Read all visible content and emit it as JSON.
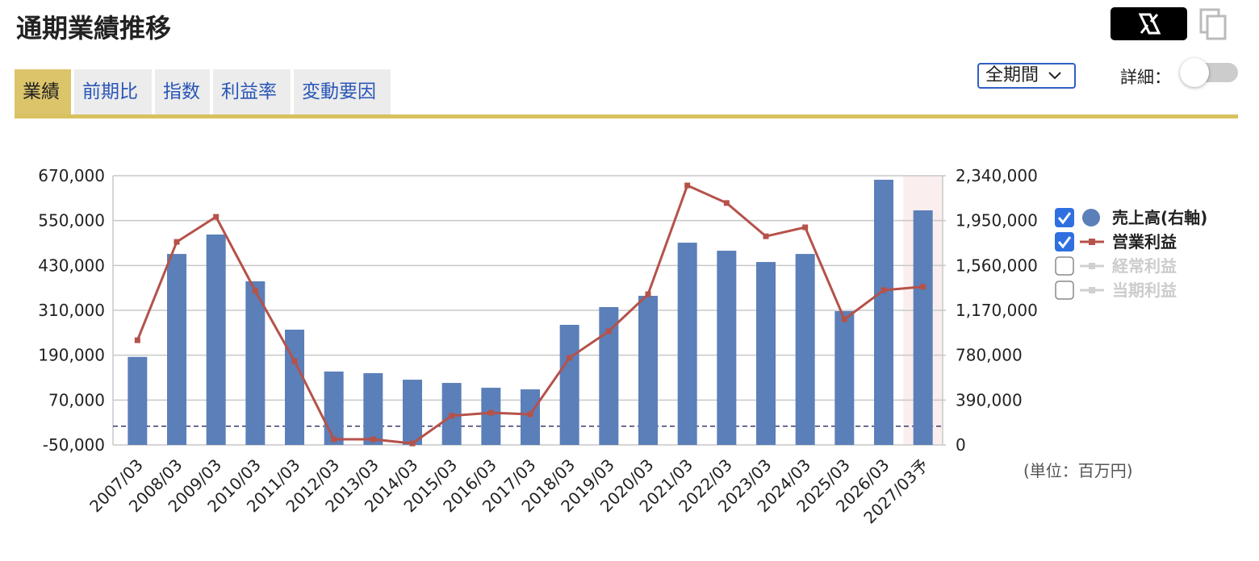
{
  "header": {
    "title": "通期業績推移"
  },
  "tabs": [
    "業績",
    "前期比",
    "指数",
    "利益率",
    "変動要因"
  ],
  "active_tab": 0,
  "period_select": "全期間",
  "detail_label": "詳細：",
  "unit_note": "(単位：百万円)",
  "chart_data": {
    "type": "combo",
    "categories": [
      "2007/03",
      "2008/03",
      "2009/03",
      "2010/03",
      "2011/03",
      "2012/03",
      "2013/03",
      "2014/03",
      "2015/03",
      "2016/03",
      "2017/03",
      "2018/03",
      "2019/03",
      "2020/03",
      "2021/03",
      "2022/03",
      "2023/03",
      "2024/03",
      "2025/03",
      "2026/03",
      "2027/03予"
    ],
    "highlight_index": 20,
    "series": [
      {
        "name": "売上高(右軸)",
        "type": "bar",
        "axis": "y2",
        "color": "#5b7fb8",
        "values": [
          765000,
          1660000,
          1829000,
          1422000,
          1002000,
          638000,
          624000,
          567000,
          539000,
          497000,
          483000,
          1044000,
          1198000,
          1296000,
          1758000,
          1688000,
          1590000,
          1660000,
          1163000,
          2305000,
          2039000
        ]
      },
      {
        "name": "営業利益",
        "type": "line",
        "color": "#b5524a",
        "values": [
          230000,
          493000,
          560000,
          362000,
          174000,
          -35000,
          -35000,
          -46000,
          28000,
          36000,
          32000,
          183000,
          254000,
          353000,
          644000,
          597000,
          508000,
          532000,
          286000,
          364000,
          373000
        ]
      }
    ],
    "hidden_series": [
      {
        "name": "経常利益"
      },
      {
        "name": "当期利益"
      }
    ],
    "ylim": [
      -50000,
      670000
    ],
    "yticks": [
      {
        "value": -50000,
        "label": "-50,000"
      },
      {
        "value": 70000,
        "label": "70,000"
      },
      {
        "value": 190000,
        "label": "190,000"
      },
      {
        "value": 310000,
        "label": "310,000"
      },
      {
        "value": 430000,
        "label": "430,000"
      },
      {
        "value": 550000,
        "label": "550,000"
      },
      {
        "value": 670000,
        "label": "670,000"
      }
    ],
    "y2lim": [
      0,
      2340000
    ],
    "y2ticks": [
      0,
      {
        "value": 390000,
        "label": "390,000"
      },
      {
        "value": 780000,
        "label": "780,000"
      },
      {
        "value": 1170000,
        "label": "1,170,000"
      },
      {
        "value": 1560000,
        "label": "1,560,000"
      },
      {
        "value": 1950000,
        "label": "1,950,000"
      },
      {
        "value": 2340000,
        "label": "2,340,000"
      }
    ],
    "grid": true
  }
}
